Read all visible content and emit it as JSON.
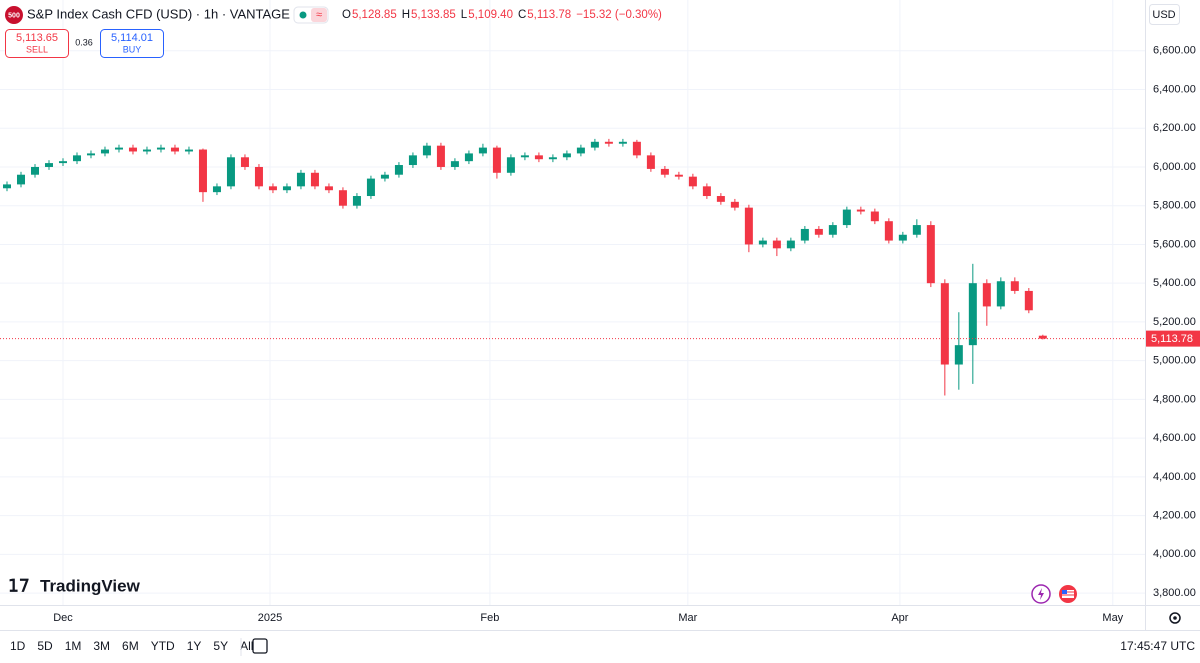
{
  "chart_data": {
    "type": "candlestick",
    "symbol_icon": "500",
    "title": "S&P Index Cash CFD (USD) · 1h · VANTAGE",
    "ohlc_legend": [
      {
        "key": "O",
        "value": "5,128.85"
      },
      {
        "key": "H",
        "value": "5,133.85"
      },
      {
        "key": "L",
        "value": "5,109.40"
      },
      {
        "key": "C",
        "value": "5,113.78"
      }
    ],
    "change": "−15.32 (−0.30%)",
    "sell": {
      "price": "5,113.65",
      "label": "SELL"
    },
    "spread": "0.36",
    "buy": {
      "price": "5,114.01",
      "label": "BUY"
    },
    "currency": "USD",
    "last_price_label": "5,113.78",
    "brand": "TradingView",
    "up_color": "#089981",
    "down_color": "#f23645",
    "grid": true,
    "open": [
      5890,
      5910,
      5960,
      6000,
      6020,
      6030,
      6060,
      6070,
      6090,
      6100,
      6080,
      6090,
      6100,
      6080,
      6090,
      5870,
      5900,
      6050,
      6000,
      5900,
      5880,
      5900,
      5970,
      5900,
      5880,
      5800,
      5850,
      5940,
      5960,
      6010,
      6060,
      6110,
      6000,
      6030,
      6070,
      6100,
      5970,
      6050,
      6060,
      6040,
      6050,
      6070,
      6100,
      6130,
      6120,
      6130,
      6060,
      5990,
      5960,
      5950,
      5900,
      5850,
      5820,
      5790,
      5600,
      5620,
      5580,
      5620,
      5680,
      5650,
      5700,
      5780,
      5770,
      5720,
      5620,
      5650,
      5700,
      5400,
      4980,
      5080,
      5400,
      5280,
      5410,
      5360,
      5128.85
    ],
    "high": [
      5925,
      5975,
      6015,
      6035,
      6045,
      6075,
      6085,
      6105,
      6115,
      6115,
      6105,
      6115,
      6115,
      6105,
      6095,
      5915,
      6065,
      6065,
      6015,
      5915,
      5915,
      5985,
      5985,
      5915,
      5895,
      5865,
      5955,
      5975,
      6025,
      6075,
      6125,
      6125,
      6045,
      6085,
      6120,
      6110,
      6065,
      6075,
      6075,
      6065,
      6085,
      6115,
      6145,
      6145,
      6145,
      6140,
      6075,
      6005,
      5975,
      5965,
      5915,
      5865,
      5835,
      5805,
      5635,
      5635,
      5635,
      5695,
      5695,
      5715,
      5795,
      5795,
      5785,
      5735,
      5665,
      5730,
      5720,
      5420,
      5250,
      5500,
      5420,
      5430,
      5430,
      5375,
      5133.85
    ],
    "low": [
      5875,
      5895,
      5945,
      5985,
      6005,
      6015,
      6045,
      6055,
      6075,
      6065,
      6065,
      6075,
      6065,
      6065,
      5820,
      5855,
      5885,
      5985,
      5885,
      5865,
      5865,
      5885,
      5885,
      5865,
      5785,
      5785,
      5835,
      5925,
      5945,
      5995,
      6045,
      5985,
      5985,
      6015,
      6055,
      5940,
      5955,
      6035,
      6025,
      6025,
      6035,
      6055,
      6085,
      6105,
      6105,
      6045,
      5975,
      5945,
      5935,
      5885,
      5835,
      5805,
      5775,
      5560,
      5585,
      5540,
      5565,
      5605,
      5635,
      5635,
      5685,
      5755,
      5705,
      5605,
      5605,
      5635,
      5380,
      4820,
      4850,
      4880,
      5180,
      5265,
      5345,
      5245,
      5109.4
    ],
    "close": [
      5910,
      5960,
      6000,
      6020,
      6030,
      6060,
      6070,
      6090,
      6100,
      6080,
      6090,
      6100,
      6080,
      6090,
      5870,
      5900,
      6050,
      6000,
      5900,
      5880,
      5900,
      5970,
      5900,
      5880,
      5800,
      5850,
      5940,
      5960,
      6010,
      6060,
      6110,
      6000,
      6030,
      6070,
      6100,
      5970,
      6050,
      6060,
      6040,
      6050,
      6070,
      6100,
      6130,
      6120,
      6130,
      6060,
      5990,
      5960,
      5950,
      5900,
      5850,
      5820,
      5790,
      5600,
      5620,
      5580,
      5620,
      5680,
      5650,
      5700,
      5780,
      5770,
      5720,
      5620,
      5650,
      5700,
      5400,
      4980,
      5080,
      5400,
      5280,
      5410,
      5360,
      5260,
      5113.78
    ],
    "xlim": [
      -0.5,
      81.3
    ],
    "xticks": [
      {
        "value": 4.0,
        "label": "Dec"
      },
      {
        "value": 18.79,
        "label": "2025"
      },
      {
        "value": 34.5,
        "label": "Feb"
      },
      {
        "value": 48.64,
        "label": "Mar"
      },
      {
        "value": 63.79,
        "label": "Apr"
      },
      {
        "value": 79.0,
        "label": "May"
      }
    ],
    "ylim": [
      3738.4,
      6862.1
    ],
    "yticks": [
      {
        "value": 3800,
        "label": "3,800.00"
      },
      {
        "value": 4000,
        "label": "4,000.00"
      },
      {
        "value": 4200,
        "label": "4,200.00"
      },
      {
        "value": 4400,
        "label": "4,400.00"
      },
      {
        "value": 4600,
        "label": "4,600.00"
      },
      {
        "value": 4800,
        "label": "4,800.00"
      },
      {
        "value": 5000,
        "label": "5,000.00"
      },
      {
        "value": 5200,
        "label": "5,200.00"
      },
      {
        "value": 5400,
        "label": "5,400.00"
      },
      {
        "value": 5600,
        "label": "5,600.00"
      },
      {
        "value": 5800,
        "label": "5,800.00"
      },
      {
        "value": 6000,
        "label": "6,000.00"
      },
      {
        "value": 6200,
        "label": "6,200.00"
      },
      {
        "value": 6400,
        "label": "6,400.00"
      },
      {
        "value": 6600,
        "label": "6,600.00"
      }
    ],
    "timeframes": [
      "1D",
      "5D",
      "1M",
      "3M",
      "6M",
      "YTD",
      "1Y",
      "5Y",
      "All"
    ],
    "clock": "17:45:47 UTC"
  }
}
